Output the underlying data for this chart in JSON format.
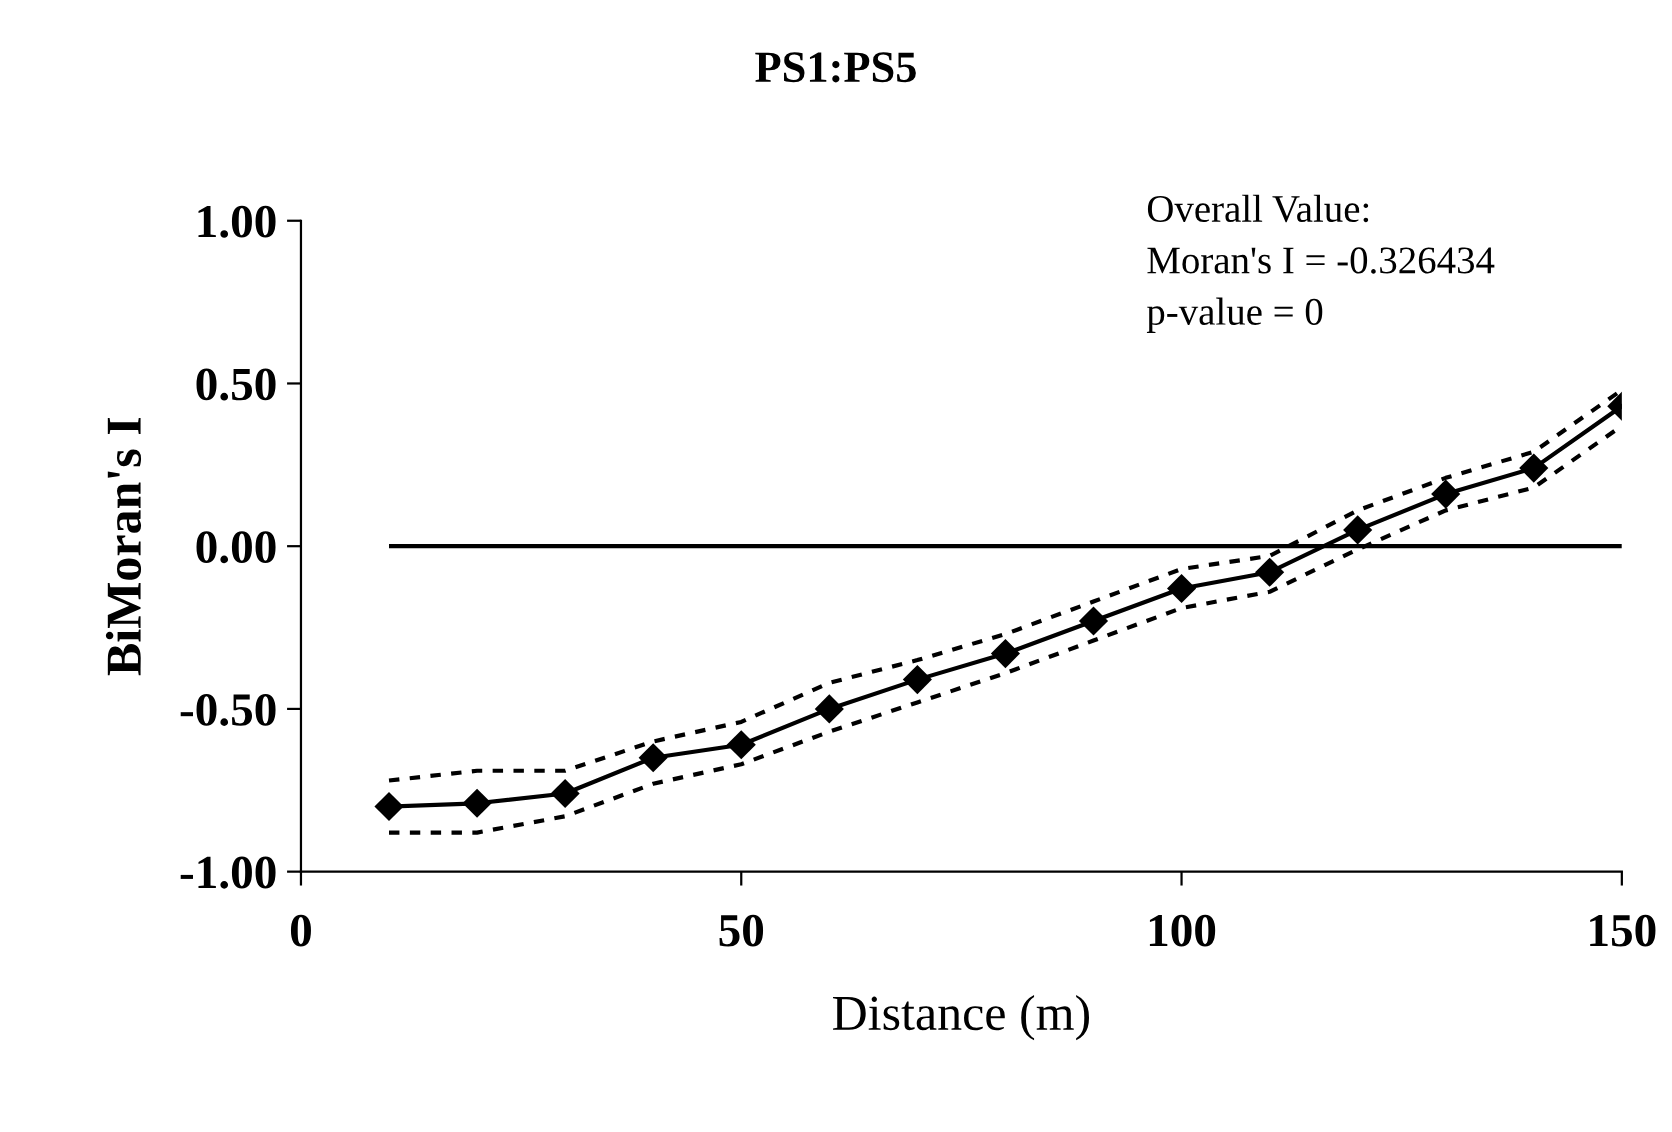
{
  "chart_data": {
    "type": "line",
    "title": "PS1:PS5",
    "xlabel": "Distance (m)",
    "ylabel": "BiMoran's I",
    "annotations": [
      "Overall Value:\nMoran's I = -0.326434\np-value = 0"
    ],
    "x": [
      10,
      20,
      30,
      40,
      50,
      60,
      70,
      80,
      90,
      100,
      110,
      120,
      130,
      140,
      150
    ],
    "series": [
      {
        "color": "#000000",
        "marker": "diamond",
        "line_style": "solid",
        "values": [
          -0.8,
          -0.79,
          -0.76,
          -0.65,
          -0.61,
          -0.5,
          -0.41,
          -0.33,
          -0.23,
          -0.13,
          -0.08,
          0.05,
          0.16,
          0.24,
          0.43
        ]
      },
      {
        "color": "#000000",
        "marker": "none",
        "line_style": "dashed",
        "values": [
          -0.72,
          -0.69,
          -0.69,
          -0.6,
          -0.54,
          -0.42,
          -0.35,
          -0.27,
          -0.17,
          -0.07,
          -0.03,
          0.11,
          0.21,
          0.29,
          0.48
        ]
      },
      {
        "color": "#000000",
        "marker": "none",
        "line_style": "dashed",
        "values": [
          -0.88,
          -0.88,
          -0.83,
          -0.73,
          -0.67,
          -0.57,
          -0.48,
          -0.39,
          -0.29,
          -0.19,
          -0.14,
          -0.01,
          0.11,
          0.18,
          0.37
        ]
      }
    ],
    "xlim": [
      0,
      150
    ],
    "xticks": [
      0,
      50,
      100,
      150
    ],
    "ylim": [
      -1,
      1
    ],
    "yticks": [
      {
        "value": -1,
        "label": "-1.00"
      },
      {
        "value": -0.5,
        "label": "-0.50"
      },
      {
        "value": 0,
        "label": "0.00"
      },
      {
        "value": 0.5,
        "label": "0.50"
      },
      {
        "value": 1,
        "label": "1.00"
      }
    ],
    "ref_lines": [
      {
        "axis": "y",
        "value": 0,
        "color": "#000000",
        "line_style": "solid"
      }
    ],
    "grid": false,
    "legend": false
  }
}
